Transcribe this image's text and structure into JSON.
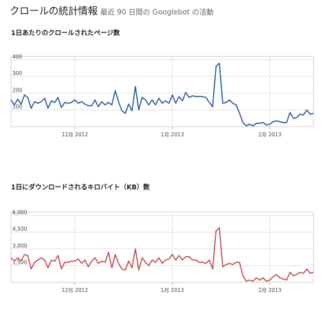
{
  "header": {
    "title": "クロールの統計情報",
    "subtitle": "最近 90 日間の Googlebot の活動"
  },
  "sections": [
    {
      "title": "1日あたりのクロールされたページ数"
    },
    {
      "title": "1日にダウンロードされるキロバイト（KB）数"
    }
  ],
  "chart_data": [
    {
      "type": "line",
      "title": "1日あたりのクロールされたページ数",
      "color": "#2b5aa0",
      "ylim": [
        0,
        420
      ],
      "y_ticks": [
        100,
        200,
        300,
        400
      ],
      "y_tick_labels": [
        "100",
        "200",
        "300",
        "400"
      ],
      "x_tick_labels": [
        "12月 2012",
        "1月 2013",
        "2月 2013"
      ],
      "x_tick_positions": [
        19,
        48,
        77
      ],
      "grid": true,
      "series": [
        {
          "values": [
            160,
            130,
            165,
            135,
            190,
            175,
            110,
            150,
            140,
            150,
            170,
            110,
            155,
            145,
            175,
            115,
            145,
            140,
            145,
            160,
            140,
            150,
            135,
            125,
            125,
            160,
            120,
            150,
            130,
            145,
            130,
            215,
            150,
            95,
            80,
            135,
            95,
            240,
            100,
            175,
            160,
            130,
            160,
            130,
            170,
            140,
            155,
            140,
            190,
            140,
            180,
            155,
            205,
            175,
            185,
            180,
            180,
            180,
            175,
            145,
            120,
            360,
            380,
            140,
            145,
            160,
            140,
            130,
            80,
            25,
            5,
            15,
            5,
            20,
            20,
            25,
            10,
            15,
            30,
            35,
            30,
            25,
            25,
            85,
            50,
            55,
            75,
            70,
            100,
            75,
            80
          ]
        }
      ]
    },
    {
      "type": "line",
      "title": "1日にダウンロードされるキロバイト（KB）数",
      "color": "#c0504d",
      "ylim": [
        0,
        6300
      ],
      "y_ticks": [
        1500,
        3000,
        4500,
        6000
      ],
      "y_tick_labels": [
        "1,500",
        "3,000",
        "4,500",
        "6,000"
      ],
      "x_tick_labels": [
        "12月 2012",
        "1月 2013",
        "2月 2013"
      ],
      "x_tick_positions": [
        19,
        48,
        77
      ],
      "grid": true,
      "series": [
        {
          "values": [
            2200,
            1900,
            2200,
            1900,
            2500,
            2400,
            1200,
            1800,
            2000,
            2200,
            2000,
            1300,
            2000,
            1900,
            2400,
            1200,
            1800,
            1800,
            1900,
            1900,
            2100,
            1700,
            2000,
            1400,
            1900,
            2200,
            1700,
            1900,
            1800,
            2700,
            1300,
            2500,
            1700,
            1200,
            1100,
            1900,
            1300,
            3000,
            1100,
            2200,
            1800,
            1500,
            2000,
            1800,
            2200,
            1700,
            2000,
            2100,
            2500,
            2000,
            2400,
            2000,
            2300,
            2300,
            2000,
            2000,
            1800,
            1800,
            1700,
            2000,
            1200,
            4600,
            4900,
            1400,
            1600,
            1700,
            1600,
            1800,
            1800,
            600,
            100,
            200,
            100,
            400,
            200,
            400,
            100,
            200,
            500,
            700,
            400,
            300,
            200,
            900,
            600,
            700,
            900,
            800,
            1200,
            800,
            900
          ]
        }
      ]
    }
  ]
}
